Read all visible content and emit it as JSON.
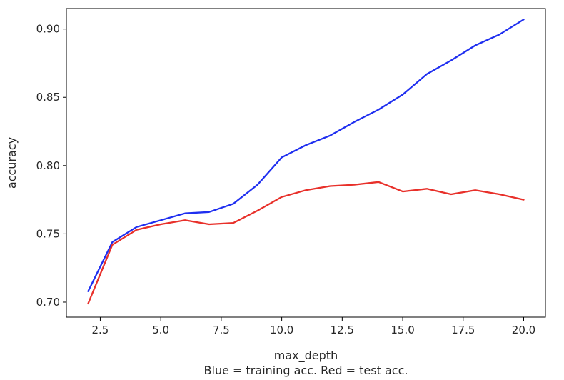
{
  "chart_data": {
    "type": "line",
    "xlabel": "max_depth",
    "ylabel": "accuracy",
    "caption": "Blue = training acc. Red = test acc.",
    "x": [
      2,
      3,
      4,
      5,
      6,
      7,
      8,
      9,
      10,
      11,
      12,
      13,
      14,
      15,
      16,
      17,
      18,
      19,
      20
    ],
    "xlim": [
      1.1,
      20.9
    ],
    "ylim": [
      0.689,
      0.915
    ],
    "xticks": [
      2.5,
      5.0,
      7.5,
      10.0,
      12.5,
      15.0,
      17.5,
      20.0
    ],
    "xtick_labels": [
      "2.5",
      "5.0",
      "7.5",
      "10.0",
      "12.5",
      "15.0",
      "17.5",
      "20.0"
    ],
    "yticks": [
      0.7,
      0.75,
      0.8,
      0.85,
      0.9
    ],
    "ytick_labels": [
      "0.70",
      "0.75",
      "0.80",
      "0.85",
      "0.90"
    ],
    "grid": false,
    "series": [
      {
        "color": "#1f2ff0",
        "values": [
          0.708,
          0.744,
          0.755,
          0.76,
          0.765,
          0.766,
          0.772,
          0.786,
          0.806,
          0.815,
          0.822,
          0.832,
          0.841,
          0.852,
          0.867,
          0.877,
          0.888,
          0.896,
          0.907
        ]
      },
      {
        "color": "#e8302a",
        "values": [
          0.699,
          0.742,
          0.753,
          0.757,
          0.76,
          0.757,
          0.758,
          0.767,
          0.777,
          0.782,
          0.785,
          0.786,
          0.788,
          0.781,
          0.783,
          0.779,
          0.782,
          0.779,
          0.775
        ]
      }
    ]
  }
}
